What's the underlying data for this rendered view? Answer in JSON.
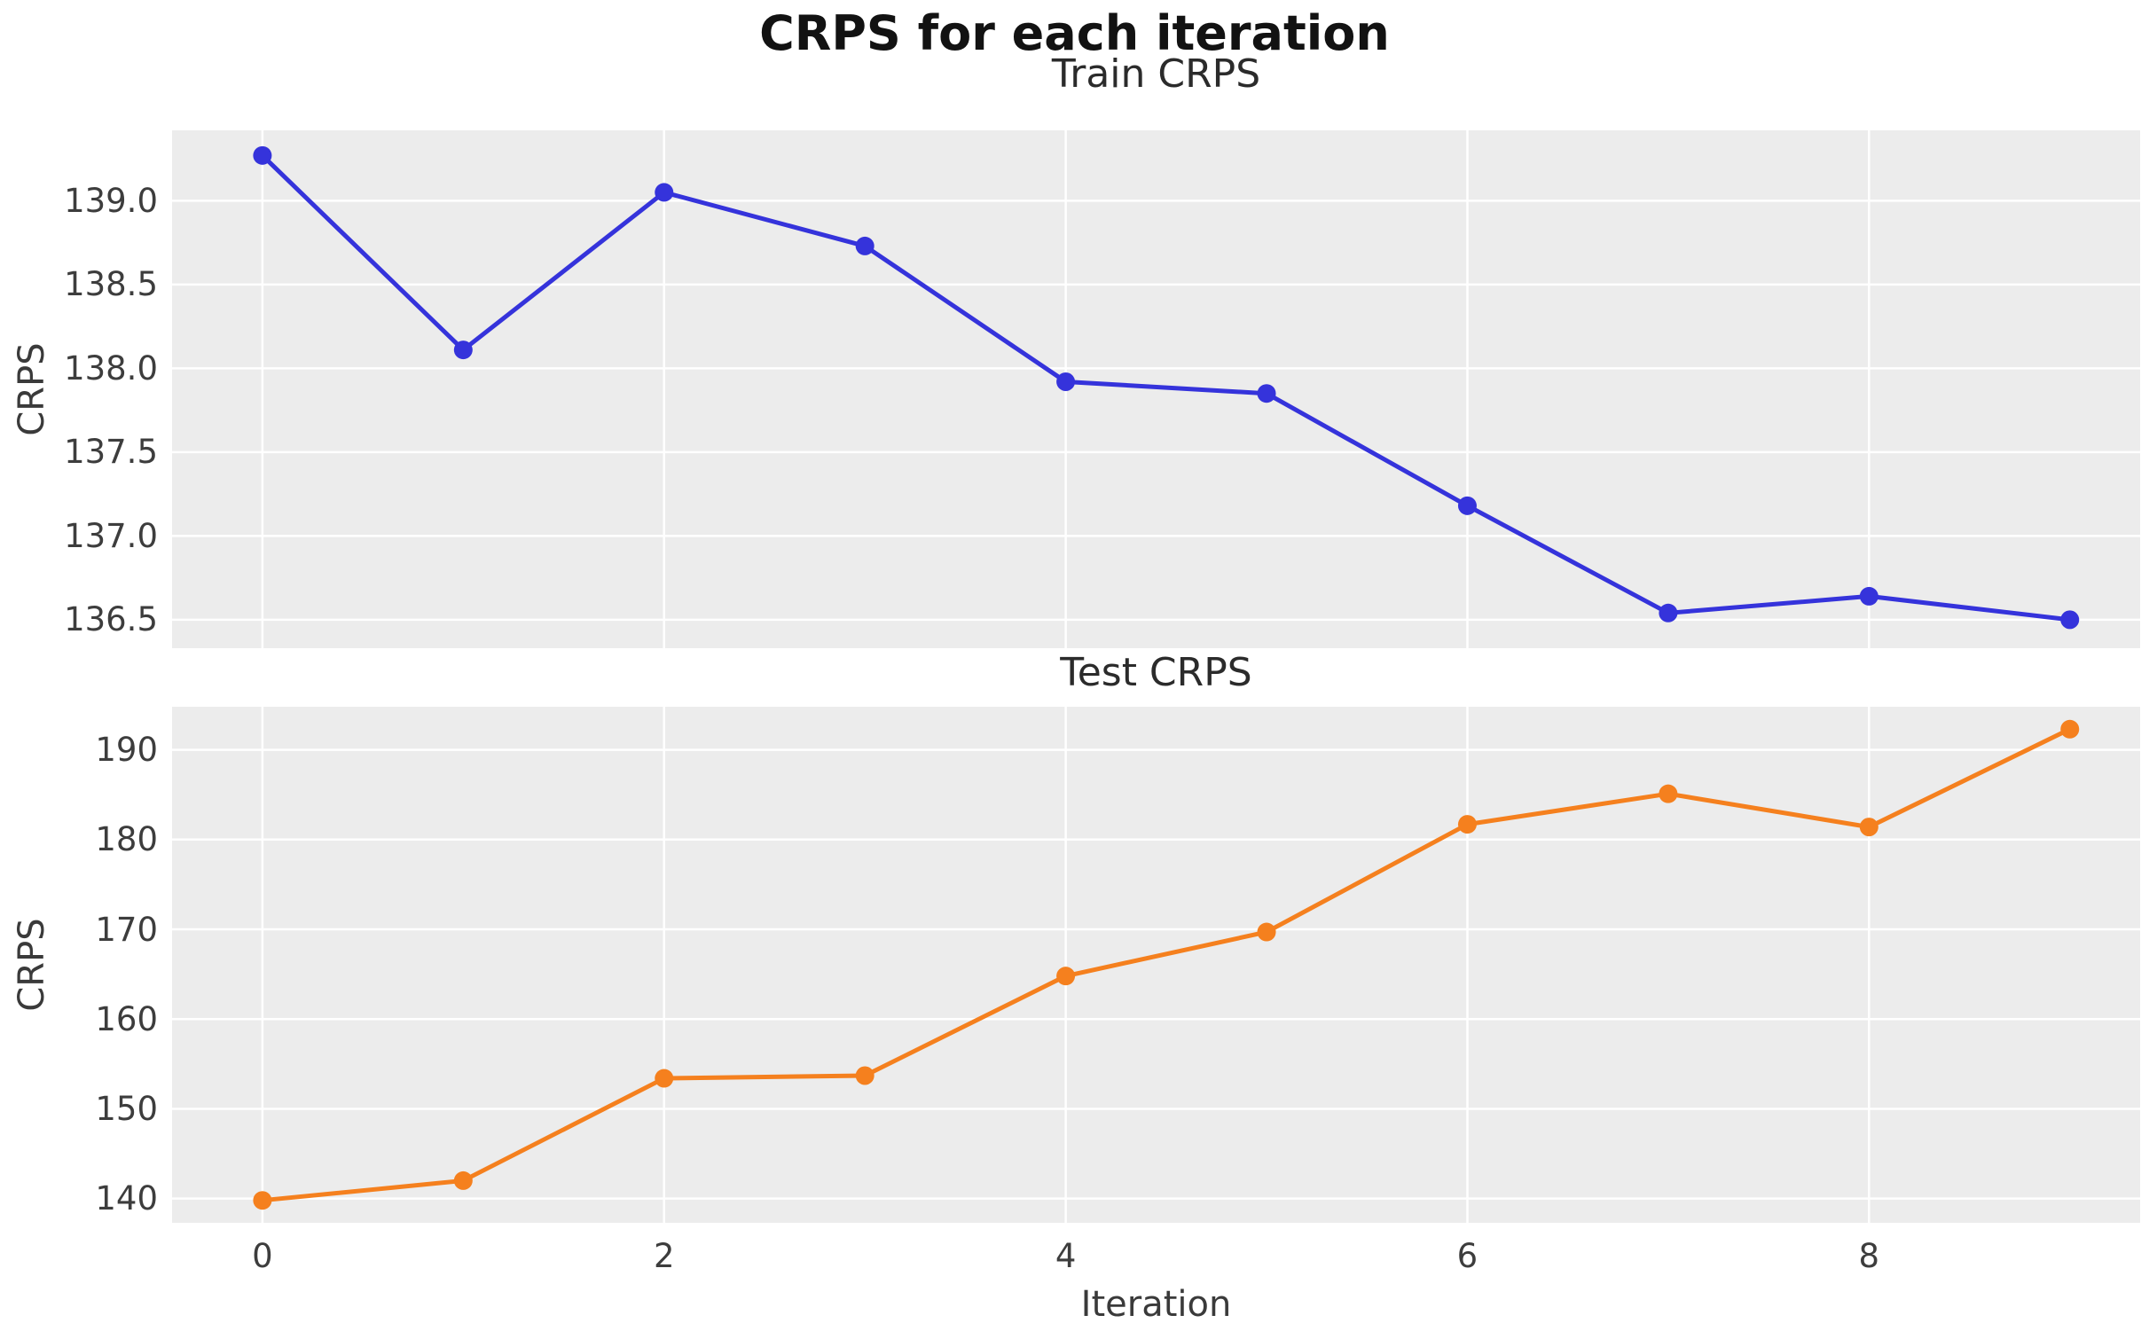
{
  "figure": {
    "suptitle": "CRPS for each iteration"
  },
  "style": {
    "figure_background": "#ffffff",
    "axes_background": "#ececec",
    "gridline_color": "#ffffff",
    "tick_text_color": "#3d3d3d",
    "title_text_color": "#2b2b2b",
    "train_line_color": "#3533db",
    "test_line_color": "#f5801e"
  },
  "xaxis": {
    "label": "Iteration",
    "xlim": [
      -0.45,
      9.35
    ],
    "ticks": [
      {
        "v": 0,
        "label": "0"
      },
      {
        "v": 2,
        "label": "2"
      },
      {
        "v": 4,
        "label": "4"
      },
      {
        "v": 6,
        "label": "6"
      },
      {
        "v": 8,
        "label": "8"
      }
    ]
  },
  "chart_data": [
    {
      "type": "line",
      "name": "train",
      "title": "Train CRPS",
      "ylabel": "CRPS",
      "grid": true,
      "legend": "none",
      "ylim": [
        136.33,
        139.42
      ],
      "yticks": [
        {
          "v": 136.5,
          "label": "136.5"
        },
        {
          "v": 137.0,
          "label": "137.0"
        },
        {
          "v": 137.5,
          "label": "137.5"
        },
        {
          "v": 138.0,
          "label": "138.0"
        },
        {
          "v": 138.5,
          "label": "138.5"
        },
        {
          "v": 139.0,
          "label": "139.0"
        }
      ],
      "series": [
        {
          "name": "Train CRPS",
          "color": "#3533db",
          "marker": "circle",
          "x": [
            0,
            1,
            2,
            3,
            4,
            5,
            6,
            7,
            8,
            9
          ],
          "values": [
            139.27,
            138.11,
            139.05,
            138.73,
            137.92,
            137.85,
            137.18,
            136.54,
            136.64,
            136.5
          ]
        }
      ]
    },
    {
      "type": "line",
      "name": "test",
      "title": "Test CRPS",
      "ylabel": "CRPS",
      "grid": true,
      "legend": "none",
      "ylim": [
        137.3,
        194.8
      ],
      "yticks": [
        {
          "v": 140,
          "label": "140"
        },
        {
          "v": 150,
          "label": "150"
        },
        {
          "v": 160,
          "label": "160"
        },
        {
          "v": 170,
          "label": "170"
        },
        {
          "v": 180,
          "label": "180"
        },
        {
          "v": 190,
          "label": "190"
        }
      ],
      "series": [
        {
          "name": "Test CRPS",
          "color": "#f5801e",
          "marker": "circle",
          "x": [
            0,
            1,
            2,
            3,
            4,
            5,
            6,
            7,
            8,
            9
          ],
          "values": [
            139.8,
            142.0,
            153.4,
            153.7,
            164.8,
            169.7,
            181.7,
            185.1,
            181.4,
            192.3
          ]
        }
      ]
    }
  ]
}
